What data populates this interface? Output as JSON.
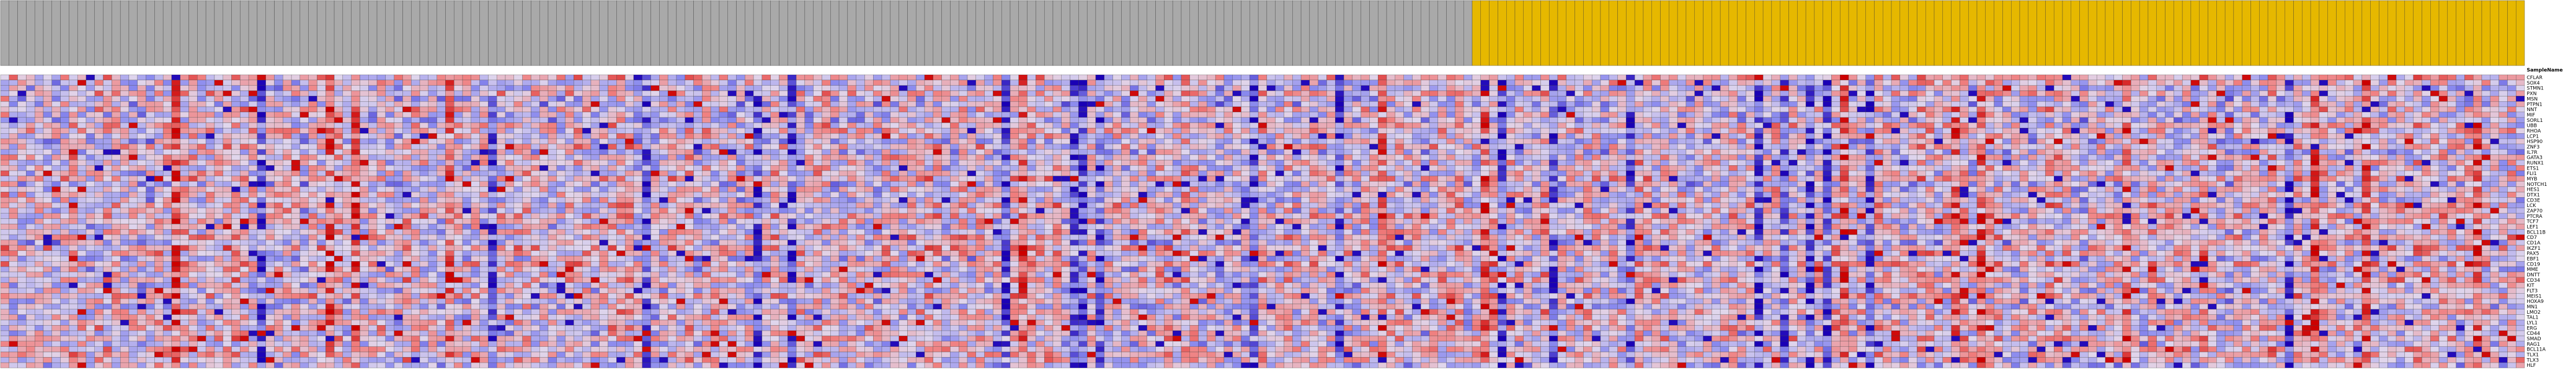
{
  "chart_data": {
    "type": "heatmap",
    "title": "",
    "xlabel": "",
    "ylabel": "",
    "column_header_label": "SampleName",
    "row_labels": [
      "CFLAR",
      "SOX4",
      "STMN1",
      "PXN",
      "MSN",
      "PTPN1",
      "NNT",
      "MIF",
      "SORL1",
      "UBB",
      "RHOA",
      "LCP1",
      "HSP90",
      "ZNF3",
      "IL7R",
      "GATA3",
      "RUNX1",
      "ETS1",
      "FLI1",
      "MYB",
      "NOTCH1",
      "HES1",
      "DTX1",
      "CD3E",
      "LCK",
      "ZAP70",
      "PTCRA",
      "TCF7",
      "LEF1",
      "BCL11B",
      "CD7",
      "CD1A",
      "IKZF1",
      "PAX5",
      "EBF1",
      "CD19",
      "MME",
      "DNTT",
      "CD34",
      "KIT",
      "FLT3",
      "MEIS1",
      "HOXA9",
      "MN1",
      "LMO2",
      "TAL1",
      "LYL1",
      "ERG",
      "CD44",
      "SMAD",
      "RAG1",
      "BCL11A",
      "TLX1",
      "TLX3",
      "HLF"
    ],
    "n_columns": 295,
    "groups": [
      {
        "count": 172,
        "color": "#a9a9a9"
      },
      {
        "count": 123,
        "color": "#e6b800"
      }
    ],
    "scale_colors": [
      "#1a00b5",
      "#8888ee",
      "#e0d6ec",
      "#f08080",
      "#cc0000"
    ],
    "seed": 20240611
  }
}
